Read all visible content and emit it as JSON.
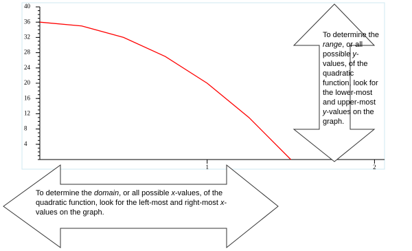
{
  "chart_data": {
    "type": "line",
    "x": [
      0,
      0.25,
      0.5,
      0.75,
      1,
      1.25,
      1.5
    ],
    "series": [
      {
        "color": "#ff0000",
        "values": [
          36,
          35,
          32,
          27,
          20,
          11,
          0
        ]
      }
    ],
    "xlim": [
      0,
      2.06
    ],
    "xticks": [
      1,
      2
    ],
    "ylim": [
      0,
      40
    ],
    "yticks": [
      4,
      8,
      12,
      16,
      20,
      24,
      28,
      32,
      36,
      40
    ]
  },
  "annotations": {
    "range": [
      "To determine the ",
      "range",
      ", or all possible ",
      "y",
      "-values, of the quadratic function, look for the lower-most and upper-most ",
      "y",
      "-values on the graph."
    ],
    "domain": [
      "To determine the ",
      "domain",
      ", or all possible ",
      "x",
      "-values, of the quadratic function, look for the left-most and right-most ",
      "x",
      "-values on the graph."
    ]
  }
}
